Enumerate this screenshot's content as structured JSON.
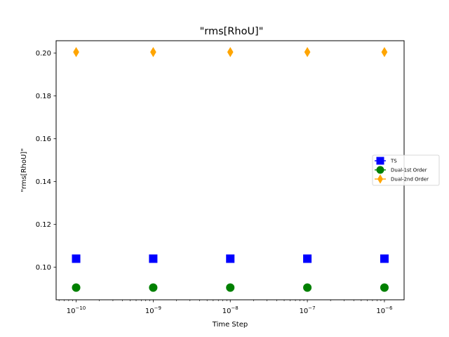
{
  "chart_data": {
    "type": "scatter",
    "title": "\"rms[RhoU]\"",
    "xlabel": "Time Step",
    "ylabel": "\"rms[RhoU]\"",
    "xscale": "log",
    "x": [
      1e-10,
      1e-09,
      1e-08,
      1e-07,
      1e-06
    ],
    "xlim": [
      5.5e-11,
      1.8e-06
    ],
    "ylim": [
      0.0848,
      0.2058
    ],
    "xticks": [
      {
        "base": "10",
        "exp": "−10",
        "value": 1e-10
      },
      {
        "base": "10",
        "exp": "−9",
        "value": 1e-09
      },
      {
        "base": "10",
        "exp": "−8",
        "value": 1e-08
      },
      {
        "base": "10",
        "exp": "−7",
        "value": 1e-07
      },
      {
        "base": "10",
        "exp": "−6",
        "value": 1e-06
      }
    ],
    "yticks": [
      {
        "label": "0.10",
        "value": 0.1
      },
      {
        "label": "0.12",
        "value": 0.12
      },
      {
        "label": "0.14",
        "value": 0.14
      },
      {
        "label": "0.16",
        "value": 0.16
      },
      {
        "label": "0.18",
        "value": 0.18
      },
      {
        "label": "0.20",
        "value": 0.2
      }
    ],
    "grid": false,
    "legend_position": "right",
    "series": [
      {
        "name": "TS",
        "marker": "square",
        "color": "#0000ff",
        "values": [
          0.104,
          0.104,
          0.104,
          0.104,
          0.104
        ]
      },
      {
        "name": "Dual-1st Order",
        "marker": "circle",
        "color": "#008000",
        "values": [
          0.0905,
          0.0905,
          0.0905,
          0.0905,
          0.0905
        ]
      },
      {
        "name": "Dual-2nd Order",
        "marker": "diamond",
        "color": "#ffa500",
        "values": [
          0.2005,
          0.2005,
          0.2005,
          0.2005,
          0.2005
        ]
      }
    ]
  }
}
